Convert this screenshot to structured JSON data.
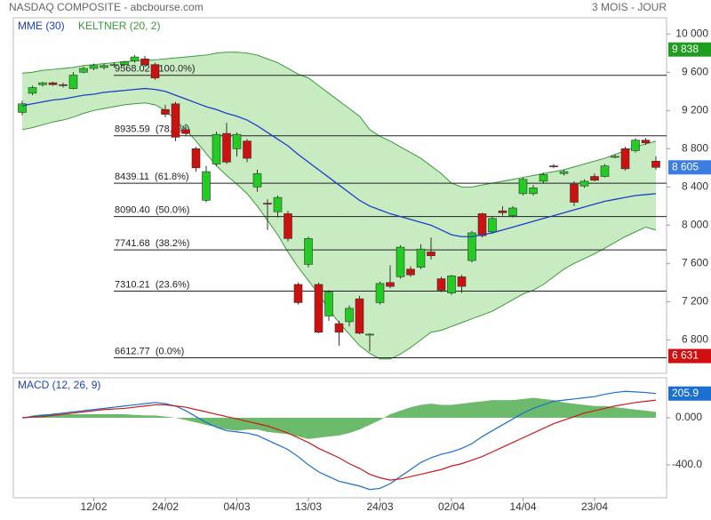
{
  "chart_data": [
    {
      "type": "candlestick",
      "title": "NASDAQ COMPOSITE - abcbourse.com",
      "subtitle": "3 MOIS - JOUR",
      "up_color": "#22cc22",
      "down_color": "#cc1111",
      "open": [
        9180,
        9380,
        9470,
        9490,
        9470,
        9430,
        9600,
        9640,
        9650,
        9670,
        9680,
        9720,
        9740,
        9680,
        9210,
        9270,
        9000,
        8800,
        8260,
        8640,
        8960,
        8800,
        8880,
        8400,
        8230,
        8140,
        8120,
        7380,
        7590,
        7380,
        7050,
        6970,
        6990,
        7230,
        6850,
        7190,
        7400,
        7460,
        7540,
        7560,
        7720,
        7440,
        7290,
        7460,
        7630,
        8120,
        7930,
        8150,
        8100,
        8330,
        8330,
        8460,
        8620,
        8540,
        8430,
        8410,
        8510,
        8510,
        8710,
        8800,
        8780,
        8890,
        8670
      ],
      "high": [
        9300,
        9460,
        9500,
        9500,
        9490,
        9600,
        9660,
        9690,
        9690,
        9700,
        9720,
        9780,
        9770,
        9700,
        9260,
        9290,
        9060,
        8820,
        8620,
        8980,
        9070,
        8970,
        8900,
        8580,
        8270,
        8310,
        8150,
        7400,
        7880,
        7400,
        7320,
        7000,
        7160,
        7260,
        6870,
        7410,
        7580,
        7790,
        7570,
        7800,
        7870,
        7460,
        7480,
        7480,
        7940,
        8130,
        8090,
        8200,
        8200,
        8500,
        8420,
        8550,
        8640,
        8580,
        8460,
        8480,
        8540,
        8640,
        8740,
        8820,
        8910,
        8910,
        8720
      ],
      "low": [
        9150,
        9360,
        9450,
        9460,
        9440,
        9420,
        9590,
        9620,
        9630,
        9650,
        9660,
        9700,
        9660,
        9520,
        9130,
        8880,
        8930,
        8560,
        8240,
        8620,
        8640,
        8720,
        8660,
        8350,
        7950,
        8080,
        7830,
        7170,
        7560,
        6870,
        7000,
        6740,
        6940,
        6860,
        6680,
        7170,
        7340,
        7440,
        7460,
        7540,
        7640,
        7300,
        7270,
        7290,
        7610,
        7870,
        7910,
        8100,
        8080,
        8310,
        8310,
        8440,
        8600,
        8520,
        8200,
        8390,
        8460,
        8500,
        8700,
        8570,
        8760,
        8840,
        8580
      ],
      "close": [
        9270,
        9440,
        9490,
        9470,
        9460,
        9570,
        9640,
        9670,
        9670,
        9680,
        9710,
        9760,
        9680,
        9540,
        9160,
        8920,
        8960,
        8600,
        8560,
        8950,
        8660,
        8950,
        8700,
        8540,
        8220,
        8290,
        7860,
        7190,
        7860,
        6880,
        7300,
        6880,
        7130,
        6870,
        6860,
        7390,
        7360,
        7770,
        7480,
        7750,
        7680,
        7320,
        7470,
        7360,
        7920,
        7890,
        8070,
        8130,
        8180,
        8480,
        8390,
        8530,
        8610,
        8560,
        8240,
        8460,
        8470,
        8620,
        8720,
        8590,
        8890,
        8860,
        8605
      ],
      "series": [
        {
          "name": "MME (30)",
          "color": "#1a3fcc",
          "values": [
            9250,
            9270,
            9290,
            9310,
            9320,
            9340,
            9360,
            9370,
            9390,
            9400,
            9410,
            9420,
            9430,
            9420,
            9400,
            9360,
            9320,
            9280,
            9240,
            9210,
            9170,
            9140,
            9100,
            9040,
            8970,
            8900,
            8830,
            8740,
            8660,
            8580,
            8500,
            8420,
            8340,
            8260,
            8200,
            8160,
            8120,
            8090,
            8060,
            8030,
            8000,
            7950,
            7900,
            7880,
            7880,
            7900,
            7920,
            7950,
            7980,
            8010,
            8040,
            8070,
            8100,
            8130,
            8160,
            8190,
            8220,
            8250,
            8270,
            8290,
            8310,
            8320,
            8330
          ]
        },
        {
          "name": "KELTNER (20, 2)",
          "color": "#3a9a3a",
          "fill": "#c9ebc2",
          "upper": [
            9590,
            9600,
            9620,
            9630,
            9640,
            9650,
            9670,
            9680,
            9690,
            9700,
            9710,
            9720,
            9725,
            9730,
            9740,
            9750,
            9760,
            9770,
            9780,
            9800,
            9810,
            9810,
            9800,
            9780,
            9740,
            9700,
            9640,
            9580,
            9540,
            9460,
            9380,
            9300,
            9220,
            9140,
            9000,
            8930,
            8880,
            8820,
            8760,
            8700,
            8620,
            8540,
            8440,
            8400,
            8400,
            8420,
            8440,
            8460,
            8480,
            8500,
            8520,
            8540,
            8560,
            8580,
            8610,
            8640,
            8670,
            8700,
            8740,
            8780,
            8820,
            8850,
            8880
          ],
          "lower": [
            9000,
            9020,
            9050,
            9080,
            9100,
            9130,
            9170,
            9200,
            9220,
            9240,
            9260,
            9270,
            9280,
            9260,
            9200,
            9100,
            9000,
            8880,
            8750,
            8620,
            8520,
            8430,
            8330,
            8200,
            8050,
            7900,
            7720,
            7560,
            7420,
            7280,
            7120,
            6980,
            6860,
            6740,
            6660,
            6600,
            6600,
            6650,
            6720,
            6800,
            6880,
            6900,
            6940,
            6980,
            7020,
            7060,
            7100,
            7160,
            7220,
            7280,
            7320,
            7380,
            7460,
            7540,
            7600,
            7650,
            7700,
            7760,
            7820,
            7880,
            7930,
            7980,
            7950
          ]
        }
      ],
      "levels": [
        {
          "value": 9568.02,
          "label": "9568.02  (100.0%)"
        },
        {
          "value": 8935.59,
          "label": "8935.59  (78.6%)"
        },
        {
          "value": 8439.11,
          "label": "8439.11  (61.8%)"
        },
        {
          "value": 8090.4,
          "label": "8090.40  (50.0%)"
        },
        {
          "value": 7741.68,
          "label": "7741.68  (38.2%)"
        },
        {
          "value": 7310.21,
          "label": "7310.21  (23.6%)"
        },
        {
          "value": 6612.77,
          "label": "6612.77  (0.0%)"
        }
      ],
      "price_labels": [
        {
          "value": 9838,
          "label": "9 838",
          "color": "#1e9e1e"
        },
        {
          "value": 8605,
          "label": "8 605",
          "color": "#3b7de0"
        },
        {
          "value": 6631,
          "label": "6 631",
          "color": "#d01010"
        }
      ],
      "ylim": [
        6450,
        10170
      ],
      "yticks": [
        {
          "value": 6800,
          "label": "6 800"
        },
        {
          "value": 7200,
          "label": "7 200"
        },
        {
          "value": 7600,
          "label": "7 600"
        },
        {
          "value": 8000,
          "label": "8 000"
        },
        {
          "value": 8400,
          "label": "8 400"
        },
        {
          "value": 8800,
          "label": "8 800"
        },
        {
          "value": 9200,
          "label": "9 200"
        },
        {
          "value": 9600,
          "label": "9 600"
        },
        {
          "value": 10000,
          "label": "10 000"
        }
      ]
    },
    {
      "type": "macd",
      "title": "MACD (12, 26, 9)",
      "categories": [
        null,
        null,
        null,
        null,
        null,
        null,
        null,
        "12/02",
        null,
        null,
        null,
        null,
        null,
        null,
        "24/02",
        null,
        null,
        null,
        null,
        null,
        null,
        "04/03",
        null,
        null,
        null,
        null,
        null,
        null,
        "13/03",
        null,
        null,
        null,
        null,
        null,
        null,
        "24/03",
        null,
        null,
        null,
        null,
        null,
        null,
        "02/04",
        null,
        null,
        null,
        null,
        null,
        null,
        "14/04",
        null,
        null,
        null,
        null,
        null,
        null,
        "23/04",
        null,
        null,
        null,
        null,
        null,
        null
      ],
      "histogram": {
        "color": "#6cbb6c",
        "values": [
          0,
          20,
          30,
          30,
          30,
          30,
          30,
          30,
          30,
          30,
          30,
          25,
          20,
          20,
          10,
          0,
          -20,
          -40,
          -60,
          -80,
          -100,
          -110,
          -100,
          -100,
          -120,
          -130,
          -140,
          -160,
          -180,
          -170,
          -160,
          -150,
          -130,
          -100,
          -60,
          -20,
          30,
          60,
          90,
          110,
          120,
          110,
          110,
          120,
          130,
          140,
          150,
          150,
          150,
          160,
          170,
          160,
          150,
          130,
          120,
          110,
          100,
          100,
          90,
          80,
          70,
          60,
          50
        ]
      },
      "series": [
        {
          "color": "#1a6fd0",
          "values": [
            0,
            10,
            20,
            30,
            40,
            50,
            60,
            70,
            80,
            90,
            100,
            110,
            120,
            130,
            120,
            100,
            60,
            10,
            -40,
            -80,
            -110,
            -120,
            -130,
            -150,
            -190,
            -230,
            -270,
            -330,
            -400,
            -460,
            -500,
            -540,
            -560,
            -580,
            -610,
            -600,
            -560,
            -500,
            -440,
            -380,
            -340,
            -310,
            -290,
            -260,
            -220,
            -160,
            -110,
            -60,
            -10,
            40,
            80,
            110,
            140,
            150,
            160,
            170,
            180,
            200,
            215,
            225,
            220,
            215,
            206
          ]
        },
        {
          "color": "#cc1a1a",
          "values": [
            0,
            5,
            10,
            20,
            30,
            40,
            50,
            60,
            70,
            75,
            80,
            90,
            100,
            110,
            110,
            100,
            90,
            70,
            50,
            30,
            10,
            -10,
            -30,
            -50,
            -70,
            -100,
            -130,
            -170,
            -210,
            -260,
            -300,
            -340,
            -390,
            -430,
            -480,
            -510,
            -530,
            -520,
            -500,
            -480,
            -460,
            -440,
            -410,
            -390,
            -360,
            -330,
            -290,
            -250,
            -210,
            -170,
            -130,
            -90,
            -50,
            -20,
            10,
            40,
            60,
            80,
            100,
            115,
            130,
            140,
            150
          ]
        }
      ],
      "value_label": {
        "value": 205.9,
        "label": "205.9",
        "color": "#1a6fd0"
      },
      "ylim": [
        -680,
        340
      ],
      "yticks": [
        {
          "value": -400,
          "label": "-400.0"
        },
        {
          "value": 0,
          "label": "0.000"
        }
      ]
    }
  ]
}
